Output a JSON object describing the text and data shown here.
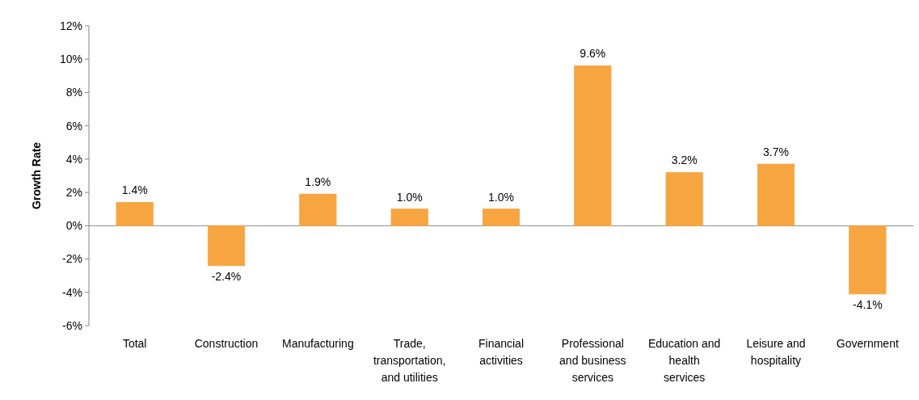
{
  "chart_data": {
    "type": "bar",
    "ylabel": "Growth Rate",
    "categories": [
      "Total",
      "Construction",
      "Manufacturing",
      "Trade, transportation, and utilities",
      "Financial activities",
      "Professional and business services",
      "Education and health services",
      "Leisure and hospitality",
      "Government"
    ],
    "values": [
      1.4,
      -2.4,
      1.9,
      1.0,
      1.0,
      9.6,
      3.2,
      3.7,
      -4.1
    ],
    "value_labels": [
      "1.4%",
      "-2.4%",
      "1.9%",
      "1.0%",
      "1.0%",
      "9.6%",
      "3.2%",
      "3.7%",
      "-4.1%"
    ],
    "color": "#f7a540",
    "ylim": [
      -6,
      12
    ],
    "yticks": [
      {
        "value": -6,
        "label": "-6%"
      },
      {
        "value": -4,
        "label": "-4%"
      },
      {
        "value": -2,
        "label": "-2%"
      },
      {
        "value": 0,
        "label": "0%"
      },
      {
        "value": 2,
        "label": "2%"
      },
      {
        "value": 4,
        "label": "4%"
      },
      {
        "value": 6,
        "label": "6%"
      },
      {
        "value": 8,
        "label": "8%"
      },
      {
        "value": 10,
        "label": "10%"
      },
      {
        "value": 12,
        "label": "12%"
      }
    ]
  }
}
